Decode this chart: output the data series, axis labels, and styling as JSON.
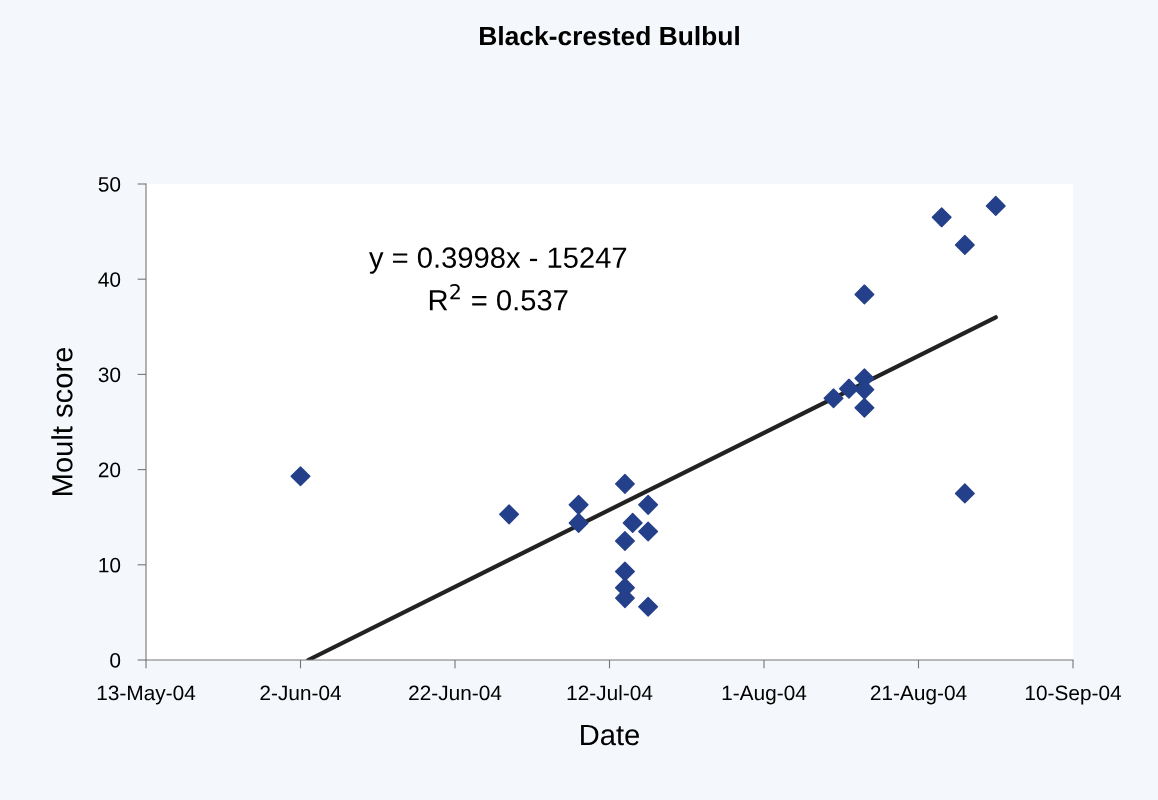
{
  "chart_data": {
    "type": "scatter",
    "title": "Black-crested Bulbul",
    "xlabel": "Date",
    "ylabel": "Moult score",
    "series": [
      {
        "color": "#24408a",
        "marker": "diamond",
        "x": [
          "2004-06-02",
          "2004-06-29",
          "2004-07-08",
          "2004-07-08",
          "2004-07-14",
          "2004-07-14",
          "2004-07-14",
          "2004-07-14",
          "2004-07-14",
          "2004-07-15",
          "2004-07-17",
          "2004-07-17",
          "2004-07-17",
          "2004-08-10",
          "2004-08-12",
          "2004-08-14",
          "2004-08-14",
          "2004-08-14",
          "2004-08-14",
          "2004-08-24",
          "2004-08-27",
          "2004-08-27",
          "2004-08-31"
        ],
        "values": [
          19.3,
          15.3,
          16.3,
          14.4,
          18.5,
          12.5,
          9.3,
          7.6,
          6.5,
          14.4,
          16.3,
          13.5,
          5.6,
          27.5,
          28.5,
          38.4,
          29.6,
          28.4,
          26.5,
          46.5,
          43.6,
          17.5,
          47.7
        ]
      },
      {
        "type": "line",
        "color": "#222222",
        "marker": "none",
        "line_style": "solid",
        "x": [
          "2004-06-03",
          "2004-08-31"
        ],
        "values": [
          0,
          36
        ]
      }
    ],
    "annotations": [
      "y = 0.3998x - 15247",
      "R$^{2}$ = 0.537"
    ],
    "xlim": [
      "2004-05-13",
      "2004-09-10"
    ],
    "xticks": [
      {
        "value": "2004-05-13",
        "label": "13-May-04"
      },
      {
        "value": "2004-06-02",
        "label": "2-Jun-04"
      },
      {
        "value": "2004-06-22",
        "label": "22-Jun-04"
      },
      {
        "value": "2004-07-12",
        "label": "12-Jul-04"
      },
      {
        "value": "2004-08-01",
        "label": "1-Aug-04"
      },
      {
        "value": "2004-08-21",
        "label": "21-Aug-04"
      },
      {
        "value": "2004-09-10",
        "label": "10-Sep-04"
      }
    ],
    "ylim": [
      0,
      50
    ],
    "yticks": [
      0,
      10,
      20,
      30,
      40,
      50
    ],
    "grid": false,
    "legend": false
  }
}
